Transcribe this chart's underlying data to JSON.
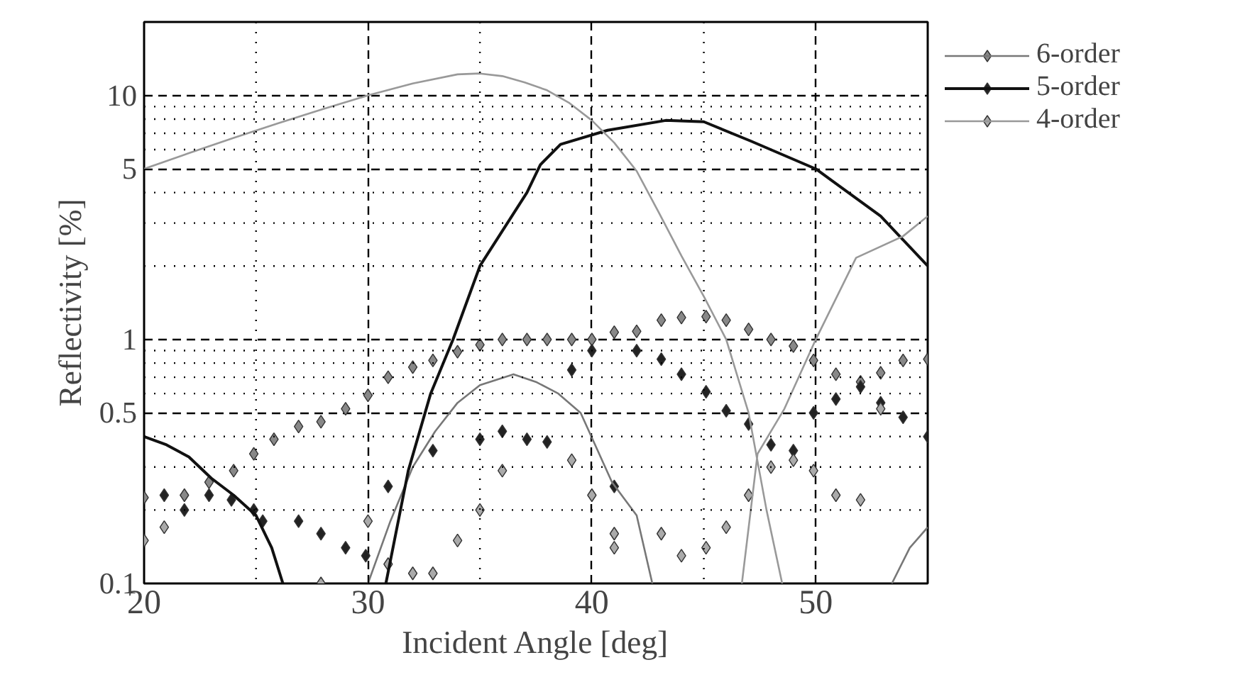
{
  "chart_data": {
    "type": "line",
    "xlabel": "Incident Angle [deg]",
    "ylabel": "Reflectivity [%]",
    "log": "y",
    "xlim": [
      20,
      55
    ],
    "xticks": [
      20,
      30,
      40,
      50
    ],
    "ylim": [
      0.1,
      20
    ],
    "yticks": [
      0.1,
      0.5,
      1,
      5,
      10
    ],
    "grid": true,
    "legend": "right",
    "line_style": "solid",
    "series": [
      {
        "type": "scatter",
        "marker": "diamond",
        "color": "#888888",
        "x": [
          20,
          21.8,
          22.9,
          24,
          24.9,
          25.8,
          26.9,
          27.9,
          29,
          30,
          30.9,
          32,
          32.9,
          34,
          35,
          36,
          37.1,
          38,
          39.1,
          40,
          41,
          42,
          43.1,
          44,
          45.1,
          46,
          47,
          48,
          49,
          49.9,
          50.9,
          52,
          52.9,
          53.9,
          55
        ],
        "values": [
          0.225,
          0.23,
          0.26,
          0.29,
          0.34,
          0.39,
          0.44,
          0.46,
          0.52,
          0.59,
          0.7,
          0.77,
          0.82,
          0.89,
          0.95,
          1.0,
          1.0,
          1.0,
          1.0,
          1.0,
          1.07,
          1.08,
          1.2,
          1.23,
          1.24,
          1.2,
          1.1,
          1.0,
          0.94,
          0.82,
          0.72,
          0.67,
          0.73,
          0.82,
          0.83
        ]
      },
      {
        "type": "scatter",
        "marker": "diamond",
        "color": "#222222",
        "x": [
          20.9,
          21.8,
          22.9,
          23.9,
          24.9,
          25.3,
          26.9,
          27.9,
          29,
          29.9,
          30.9,
          32.9,
          35,
          36,
          37.1,
          38,
          39.1,
          40,
          41,
          42,
          43.1,
          44,
          45.1,
          46,
          47,
          48,
          49,
          49.9,
          50.9,
          52,
          52.9,
          53.9,
          55
        ],
        "values": [
          0.23,
          0.2,
          0.23,
          0.22,
          0.2,
          0.18,
          0.18,
          0.16,
          0.14,
          0.13,
          0.25,
          0.35,
          0.39,
          0.42,
          0.39,
          0.38,
          0.75,
          0.9,
          0.25,
          0.9,
          0.83,
          0.72,
          0.61,
          0.51,
          0.45,
          0.37,
          0.35,
          0.5,
          0.57,
          0.64,
          0.55,
          0.48,
          0.4
        ]
      },
      {
        "type": "scatter",
        "marker": "diamond",
        "color": "#aaaaaa",
        "x": [
          20,
          20.9,
          27.9,
          30,
          30.9,
          32,
          32.9,
          34,
          35,
          36,
          39.1,
          40,
          41,
          41,
          43.1,
          44,
          45.1,
          46,
          47,
          48,
          49,
          49.9,
          50.9,
          52,
          52.9
        ],
        "values": [
          0.15,
          0.17,
          0.1,
          0.18,
          0.12,
          0.11,
          0.11,
          0.15,
          0.2,
          0.29,
          0.32,
          0.23,
          0.16,
          0.14,
          0.16,
          0.13,
          0.14,
          0.17,
          0.23,
          0.3,
          0.32,
          0.29,
          0.23,
          0.22,
          0.52
        ]
      },
      {
        "name": "6-order",
        "color": "#777777",
        "x": [
          30,
          31,
          32,
          33,
          34,
          35,
          36.5,
          37.5,
          38.5,
          39.5,
          40.9,
          42,
          42.7,
          null,
          53.4,
          54.2,
          55
        ],
        "values": [
          0.1,
          0.18,
          0.3,
          0.42,
          0.55,
          0.65,
          0.72,
          0.67,
          0.6,
          0.5,
          0.26,
          0.19,
          0.1,
          null,
          0.1,
          0.14,
          0.17
        ]
      },
      {
        "name": "5-order",
        "color": "#111111",
        "x": [
          20,
          21,
          22,
          23,
          24,
          25,
          25.7,
          26.2,
          null,
          30.8,
          31.8,
          32.8,
          33.8,
          35,
          37.1,
          37.7,
          38.6,
          40.7,
          43.3,
          45,
          47.1,
          50,
          52.9,
          55
        ],
        "values": [
          0.4,
          0.37,
          0.33,
          0.27,
          0.23,
          0.19,
          0.14,
          0.1,
          null,
          0.1,
          0.29,
          0.6,
          1.0,
          2.0,
          4.0,
          5.2,
          6.3,
          7.2,
          7.9,
          7.8,
          6.5,
          5.0,
          3.2,
          2.0
        ]
      },
      {
        "name": "4-order",
        "color": "#999999",
        "x": [
          20,
          22,
          24,
          26,
          28,
          30,
          32,
          34,
          35,
          36,
          37,
          38,
          39,
          40,
          41,
          42,
          43,
          44,
          45,
          46,
          47,
          47.8,
          48.5,
          null,
          46.7,
          47.4,
          48.6,
          50,
          51.8,
          53.9,
          55
        ],
        "values": [
          5,
          5.8,
          6.7,
          7.7,
          8.8,
          10,
          11.2,
          12.2,
          12.3,
          12.0,
          11.3,
          10.5,
          9.3,
          7.9,
          6.4,
          4.9,
          3.3,
          2.2,
          1.5,
          1.0,
          0.5,
          0.2,
          0.1,
          null,
          0.1,
          0.34,
          0.52,
          1.0,
          2.16,
          2.65,
          3.2
        ]
      }
    ]
  }
}
